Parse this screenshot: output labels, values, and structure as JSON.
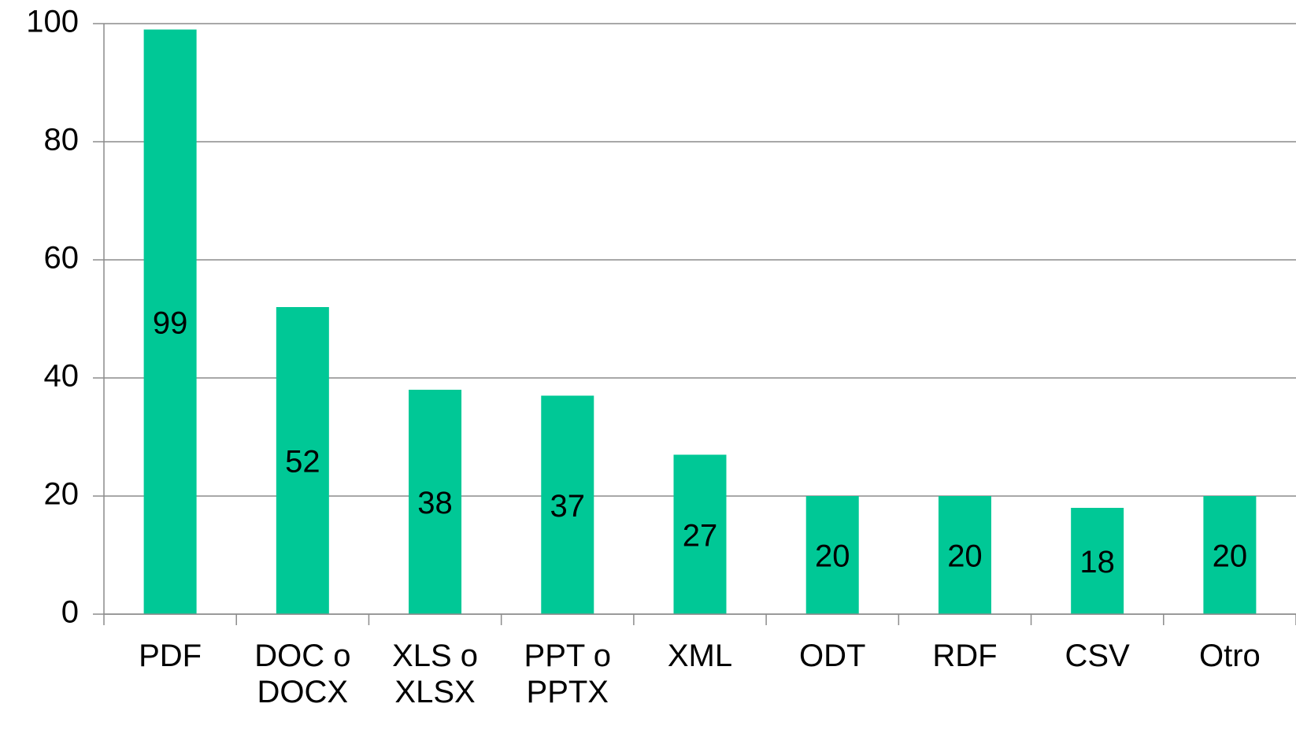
{
  "chart_data": {
    "type": "bar",
    "categories": [
      "PDF",
      "DOC o DOCX",
      "XLS o XLSX",
      "PPT o PPTX",
      "XML",
      "ODT",
      "RDF",
      "CSV",
      "Otro"
    ],
    "values": [
      99,
      52,
      38,
      37,
      27,
      20,
      20,
      18,
      20
    ],
    "color": "#00c896",
    "ylim": [
      0,
      100
    ],
    "yticks": [
      0,
      20,
      40,
      60,
      80,
      100
    ],
    "grid": true
  }
}
